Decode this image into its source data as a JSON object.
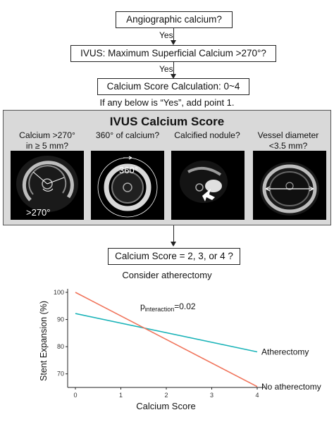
{
  "flow": {
    "box1": "Angiographic calcium?",
    "yes1": "Yes",
    "box2": "IVUS: Maximum Superficial Calcium >270°?",
    "yes2": "Yes",
    "box3": "Calcium Score Calculation: 0~4",
    "note": "If any below is “Yes”, add point 1.",
    "box4": "Calcium Score = 2, 3, or 4 ?",
    "consider": "Consider atherectomy"
  },
  "ivus": {
    "title": "IVUS Calcium Score",
    "panels": [
      {
        "line1": "Calcium >270°",
        "line2": "in ≥ 5 mm?",
        "overlay": ">270°"
      },
      {
        "line1": "360° of calcium?",
        "line2": "",
        "overlay": "360°"
      },
      {
        "line1": "Calcified nodule?",
        "line2": "",
        "overlay": ""
      },
      {
        "line1": "Vessel diameter",
        "line2": "<3.5 mm?",
        "overlay": ""
      }
    ]
  },
  "chart_data": {
    "type": "line",
    "xlabel": "Calcium Score",
    "ylabel": "Stent Expansion (%)",
    "xlim": [
      0,
      4
    ],
    "ylim": [
      65,
      100
    ],
    "xticks": [
      "0",
      "1",
      "2",
      "3",
      "4"
    ],
    "yticks": [
      "70",
      "80",
      "90",
      "100"
    ],
    "annotation": {
      "main": "p",
      "sub": "interaction",
      "value": "=0.02"
    },
    "series": [
      {
        "name": "Atherectomy",
        "color": "#1ab3b8",
        "x": [
          0,
          4
        ],
        "y": [
          92.2,
          78.1
        ]
      },
      {
        "name": "No atherectomy",
        "color": "#f0735a",
        "x": [
          0,
          4
        ],
        "y": [
          100,
          65.3
        ]
      }
    ]
  }
}
